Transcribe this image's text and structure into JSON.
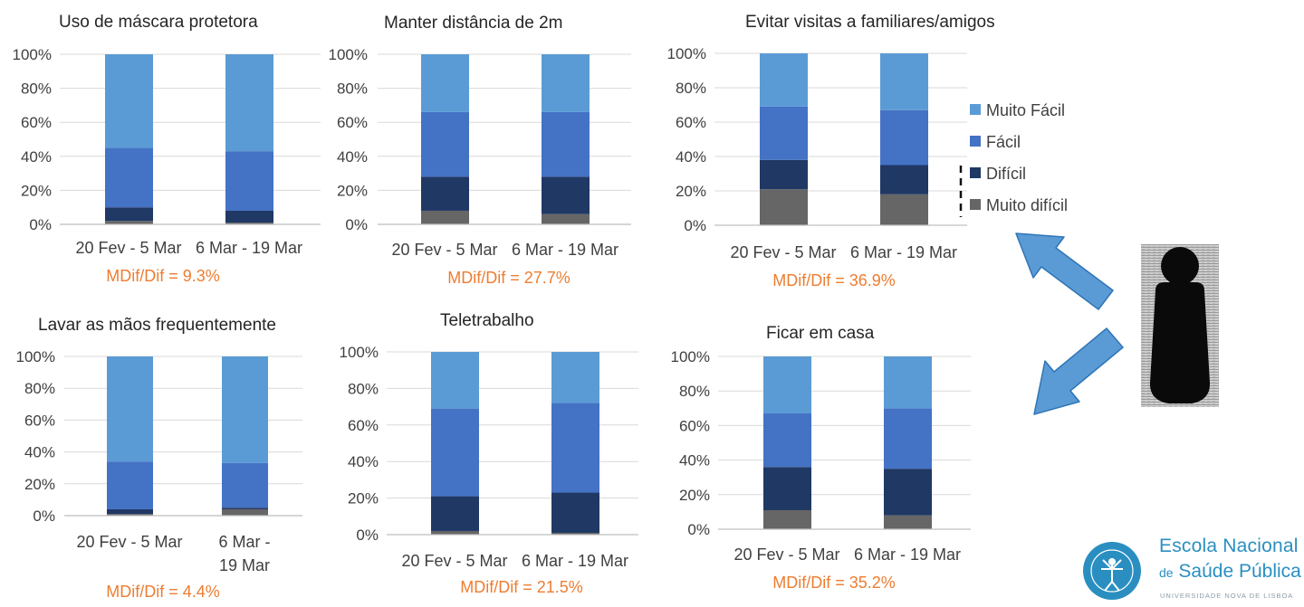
{
  "colors": {
    "muito_facil": "#5b9bd5",
    "facil": "#4472c4",
    "dificil": "#203864",
    "muito_dificil": "#666666",
    "annotation": "#ed7d31",
    "arrow_fill": "#5b9bd5",
    "arrow_stroke": "#2e75b6",
    "logo": "#2a8fc0"
  },
  "legend": {
    "items": [
      "Muito Fácil",
      "Fácil",
      "Difícil",
      "Muito difícil"
    ]
  },
  "person_icon": "person-silhouette-icon",
  "arrow_icons": [
    "arrow-up-left-icon",
    "arrow-down-left-icon"
  ],
  "logo": {
    "line1": "Escola Nacional",
    "line2_prefix": "de",
    "line2": "Saúde Pública",
    "line3": "UNIVERSIDADE NOVA DE LISBOA",
    "seal_icon": "vitruvian-seal-icon"
  },
  "chart_data": [
    {
      "type": "bar",
      "stacked": true,
      "title": "Uso de máscara protetora",
      "categories": [
        "20 Fev - 5 Mar",
        "6 Mar - 19 Mar"
      ],
      "ylim": [
        0,
        100
      ],
      "yticks": [
        "0%",
        "20%",
        "40%",
        "60%",
        "80%",
        "100%"
      ],
      "series": [
        {
          "name": "Muito difícil",
          "values": [
            2,
            1
          ]
        },
        {
          "name": "Difícil",
          "values": [
            8,
            7
          ]
        },
        {
          "name": "Fácil",
          "values": [
            35,
            35
          ]
        },
        {
          "name": "Muito Fácil",
          "values": [
            55,
            57
          ]
        }
      ],
      "annotation": "MDif/Dif = 9.3%"
    },
    {
      "type": "bar",
      "stacked": true,
      "title": "Manter distância de 2m",
      "categories": [
        "20 Fev - 5 Mar",
        "6 Mar - 19 Mar"
      ],
      "ylim": [
        0,
        100
      ],
      "yticks": [
        "0%",
        "20%",
        "40%",
        "60%",
        "80%",
        "100%"
      ],
      "series": [
        {
          "name": "Muito difícil",
          "values": [
            8,
            6
          ]
        },
        {
          "name": "Difícil",
          "values": [
            20,
            22
          ]
        },
        {
          "name": "Fácil",
          "values": [
            38,
            38
          ]
        },
        {
          "name": "Muito Fácil",
          "values": [
            34,
            34
          ]
        }
      ],
      "annotation": "MDif/Dif = 27.7%"
    },
    {
      "type": "bar",
      "stacked": true,
      "title": "Evitar visitas a familiares/amigos",
      "categories": [
        "20 Fev - 5 Mar",
        "6 Mar - 19 Mar"
      ],
      "ylim": [
        0,
        100
      ],
      "yticks": [
        "0%",
        "20%",
        "40%",
        "60%",
        "80%",
        "100%"
      ],
      "series": [
        {
          "name": "Muito difícil",
          "values": [
            21,
            18
          ]
        },
        {
          "name": "Difícil",
          "values": [
            17,
            17
          ]
        },
        {
          "name": "Fácil",
          "values": [
            31,
            32
          ]
        },
        {
          "name": "Muito Fácil",
          "values": [
            31,
            33
          ]
        }
      ],
      "annotation": "MDif/Dif = 36.9%"
    },
    {
      "type": "bar",
      "stacked": true,
      "title": "Lavar as mãos frequentemente",
      "categories": [
        "20 Fev - 5 Mar",
        "6 Mar - 19 Mar"
      ],
      "ylim": [
        0,
        100
      ],
      "yticks": [
        "0%",
        "20%",
        "40%",
        "60%",
        "80%",
        "100%"
      ],
      "series": [
        {
          "name": "Muito difícil",
          "values": [
            1,
            4
          ]
        },
        {
          "name": "Difícil",
          "values": [
            3,
            1
          ]
        },
        {
          "name": "Fácil",
          "values": [
            30,
            28
          ]
        },
        {
          "name": "Muito Fácil",
          "values": [
            66,
            67
          ]
        }
      ],
      "annotation": "MDif/Dif = 4.4%"
    },
    {
      "type": "bar",
      "stacked": true,
      "title": "Teletrabalho",
      "categories": [
        "20 Fev - 5 Mar",
        "6 Mar - 19 Mar"
      ],
      "ylim": [
        0,
        100
      ],
      "yticks": [
        "0%",
        "20%",
        "40%",
        "60%",
        "80%",
        "100%"
      ],
      "series": [
        {
          "name": "Muito difícil",
          "values": [
            2,
            1
          ]
        },
        {
          "name": "Difícil",
          "values": [
            19,
            22
          ]
        },
        {
          "name": "Fácil",
          "values": [
            48,
            49
          ]
        },
        {
          "name": "Muito Fácil",
          "values": [
            31,
            28
          ]
        }
      ],
      "annotation": "MDif/Dif = 21.5%"
    },
    {
      "type": "bar",
      "stacked": true,
      "title": "Ficar em casa",
      "categories": [
        "20 Fev - 5 Mar",
        "6 Mar - 19 Mar"
      ],
      "ylim": [
        0,
        100
      ],
      "yticks": [
        "0%",
        "20%",
        "40%",
        "60%",
        "80%",
        "100%"
      ],
      "series": [
        {
          "name": "Muito difícil",
          "values": [
            11,
            8
          ]
        },
        {
          "name": "Difícil",
          "values": [
            25,
            27
          ]
        },
        {
          "name": "Fácil",
          "values": [
            31,
            35
          ]
        },
        {
          "name": "Muito Fácil",
          "values": [
            33,
            30
          ]
        }
      ],
      "annotation": "MDif/Dif = 35.2%"
    }
  ]
}
